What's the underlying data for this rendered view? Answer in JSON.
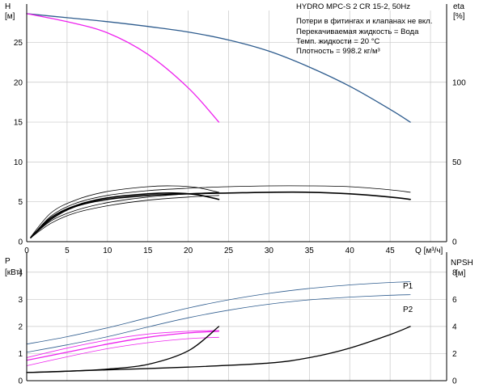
{
  "title": "HYDRO MPC-S 2 CR 15-2, 50Hz",
  "notes": [
    "Потери в фитингах и клапанах не вкл.",
    "Перекачиваемая жидкость = Вода",
    "Темп. жидкости = 20 °C",
    "Плотность = 998.2 кг/м³"
  ],
  "colors": {
    "blue_series": "#2e5c8e",
    "magenta_series": "#ee22ee",
    "black_series": "#000000",
    "grid": "#c8c8c8"
  },
  "chart_data": [
    {
      "type": "line",
      "panel": "H / eta",
      "xlabel": "Q [м³/ч]",
      "ylabel": "H",
      "ylabel_unit": "[м]",
      "right_label": "eta",
      "right_unit": "[%]",
      "xlim": [
        0,
        52
      ],
      "ylim": [
        0,
        29
      ],
      "right_ylim": [
        0,
        145
      ],
      "grid": true,
      "x_ticks": [
        0,
        5,
        10,
        15,
        20,
        25,
        30,
        35,
        40,
        45,
        50
      ],
      "x_tick_labels": [
        "0",
        "5",
        "10",
        "15",
        "20",
        "25",
        "30",
        "35",
        "40",
        "45",
        "Q [м³/ч]"
      ],
      "y_ticks": [
        0,
        5,
        10,
        15,
        20,
        25
      ],
      "right_ticks": [
        0,
        50,
        100
      ],
      "series": [
        {
          "axis": "left",
          "color": "blue",
          "width": 1.3,
          "x": [
            0,
            5,
            10,
            15,
            20,
            25,
            30,
            35,
            40,
            45,
            47.5
          ],
          "y": [
            28.6,
            28.1,
            27.6,
            27.0,
            26.3,
            25.3,
            23.9,
            21.9,
            19.5,
            16.6,
            15.0
          ]
        },
        {
          "axis": "left",
          "color": "magenta",
          "width": 1.3,
          "x": [
            0,
            5,
            10,
            15,
            20,
            23.8
          ],
          "y": [
            28.6,
            27.6,
            26.2,
            23.5,
            19.3,
            15.0
          ]
        },
        {
          "axis": "left",
          "color": "black",
          "width": 1.6,
          "x": [
            0.5,
            3,
            6,
            10,
            15,
            20,
            25,
            30,
            35,
            40,
            45,
            47.5
          ],
          "y": [
            0.5,
            2.8,
            4.4,
            5.3,
            5.8,
            6.0,
            6.1,
            6.2,
            6.2,
            6.0,
            5.6,
            5.3
          ]
        },
        {
          "axis": "left",
          "color": "black",
          "width": 0.8,
          "x": [
            0.5,
            3,
            6,
            10,
            15,
            20,
            25,
            30,
            35,
            40,
            45,
            47.5
          ],
          "y": [
            0.5,
            3.2,
            4.8,
            5.8,
            6.4,
            6.7,
            6.9,
            7.0,
            7.0,
            6.9,
            6.5,
            6.2
          ]
        },
        {
          "axis": "left",
          "color": "black",
          "width": 1.6,
          "x": [
            0.5,
            3,
            6,
            10,
            15,
            18,
            21,
            23.8
          ],
          "y": [
            0.5,
            3.0,
            4.5,
            5.5,
            6.0,
            6.1,
            5.9,
            5.3
          ]
        },
        {
          "axis": "left",
          "color": "black",
          "width": 0.8,
          "x": [
            0.5,
            3,
            6,
            10,
            15,
            18,
            21,
            23.8
          ],
          "y": [
            0.6,
            3.6,
            5.2,
            6.3,
            6.9,
            7.0,
            6.8,
            6.2
          ]
        },
        {
          "axis": "left",
          "color": "black",
          "width": 0.8,
          "x": [
            0.5,
            3,
            6,
            10,
            15,
            20,
            23.8
          ],
          "y": [
            0.5,
            2.3,
            3.6,
            4.5,
            5.2,
            5.6,
            5.8
          ]
        },
        {
          "axis": "left",
          "color": "black",
          "width": 0.8,
          "x": [
            0.5,
            3,
            6,
            10,
            15,
            20,
            23.8
          ],
          "y": [
            0.5,
            2.6,
            3.9,
            4.9,
            5.6,
            6.0,
            6.2
          ]
        }
      ]
    },
    {
      "type": "line",
      "panel": "P / NPSH",
      "ylabel": "P",
      "ylabel_unit": "[кВт]",
      "right_label": "NPSH",
      "right_unit": "[м]",
      "xlim": [
        0,
        52
      ],
      "ylim": [
        0,
        4.5
      ],
      "right_ylim": [
        0,
        9
      ],
      "grid": true,
      "x_ticks": [
        0,
        5,
        10,
        15,
        20,
        25,
        30,
        35,
        40,
        45,
        50
      ],
      "y_ticks": [
        0,
        1,
        2,
        3,
        4
      ],
      "right_ticks": [
        0,
        2,
        4,
        6,
        8
      ],
      "series": [
        {
          "name": "P1",
          "axis": "left",
          "color": "blue",
          "width": 0.8,
          "x": [
            0,
            5,
            10,
            15,
            20,
            25,
            30,
            35,
            40,
            45,
            47.5
          ],
          "y": [
            1.35,
            1.62,
            1.95,
            2.32,
            2.68,
            2.98,
            3.22,
            3.4,
            3.53,
            3.62,
            3.65
          ]
        },
        {
          "name": "P2",
          "axis": "left",
          "color": "blue",
          "width": 0.8,
          "x": [
            0,
            5,
            10,
            15,
            20,
            25,
            30,
            35,
            40,
            45,
            47.5
          ],
          "y": [
            1.05,
            1.32,
            1.62,
            1.98,
            2.32,
            2.6,
            2.82,
            2.98,
            3.08,
            3.15,
            3.17
          ]
        },
        {
          "axis": "left",
          "color": "magenta",
          "width": 1.3,
          "x": [
            0,
            5,
            10,
            15,
            20,
            23.8
          ],
          "y": [
            0.75,
            1.05,
            1.35,
            1.6,
            1.76,
            1.82
          ]
        },
        {
          "axis": "left",
          "color": "magenta",
          "width": 0.8,
          "x": [
            0,
            5,
            10,
            15,
            20,
            23.8
          ],
          "y": [
            0.85,
            1.2,
            1.5,
            1.72,
            1.82,
            1.85
          ]
        },
        {
          "axis": "left",
          "color": "magenta",
          "width": 0.8,
          "x": [
            0,
            5,
            10,
            15,
            20,
            23.8
          ],
          "y": [
            0.55,
            0.88,
            1.18,
            1.4,
            1.55,
            1.6
          ]
        },
        {
          "axis": "right",
          "color": "black",
          "width": 1.3,
          "x": [
            0,
            5,
            10,
            15,
            20,
            23.8
          ],
          "y": [
            0.6,
            0.7,
            0.85,
            1.2,
            2.2,
            4.0
          ]
        },
        {
          "axis": "right",
          "color": "black",
          "width": 1.3,
          "x": [
            0,
            10,
            20,
            30,
            35,
            40,
            45,
            47.5
          ],
          "y": [
            0.6,
            0.8,
            1.0,
            1.3,
            1.7,
            2.4,
            3.4,
            4.0
          ]
        }
      ]
    }
  ]
}
